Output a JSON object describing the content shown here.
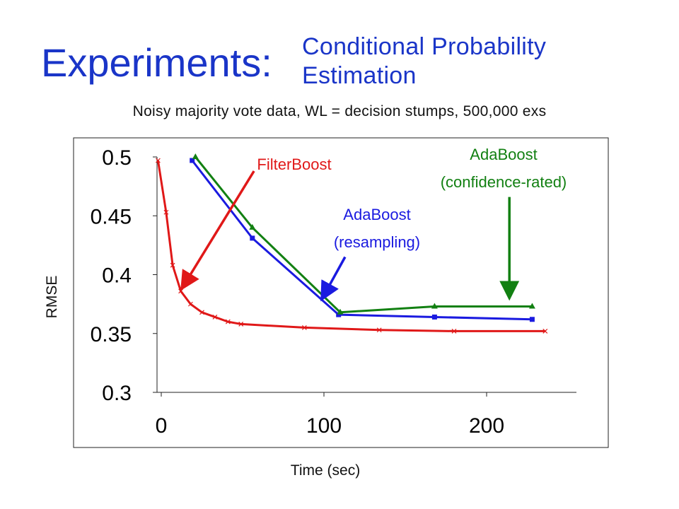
{
  "slide": {
    "title": "Experiments:",
    "subtitle_line1": "Conditional Probability",
    "subtitle_line2": "Estimation",
    "caption": "Noisy majority vote data, WL = decision stumps, 500,000 exs"
  },
  "colors": {
    "title": "#1a35c8",
    "filterboost": "#e01818",
    "adaboost_resampling": "#1a1ae0",
    "adaboost_confidence": "#128012"
  },
  "chart_data": {
    "type": "line",
    "xlabel": "Time (sec)",
    "ylabel": "RMSE",
    "xlim": [
      -5,
      255
    ],
    "ylim": [
      0.3,
      0.5
    ],
    "xticks": [
      0,
      100,
      200
    ],
    "xtick_labels": [
      "0",
      "100",
      "200"
    ],
    "yticks": [
      0.3,
      0.35,
      0.4,
      0.45,
      0.5
    ],
    "ytick_labels": [
      "0.3",
      "0.35",
      "0.4",
      "0.45",
      "0.5"
    ],
    "grid": false,
    "series": [
      {
        "name": "FilterBoost",
        "color": "#e01818",
        "marker": "x",
        "x": [
          -2,
          3,
          7,
          12,
          18,
          25,
          33,
          41,
          49,
          88,
          134,
          180,
          236
        ],
        "y": [
          0.497,
          0.453,
          0.408,
          0.386,
          0.375,
          0.368,
          0.364,
          0.36,
          0.358,
          0.355,
          0.353,
          0.352,
          0.352
        ]
      },
      {
        "name": "AdaBoost (resampling)",
        "color": "#1a1ae0",
        "marker": "square",
        "x": [
          19,
          56,
          109,
          168,
          228
        ],
        "y": [
          0.497,
          0.431,
          0.366,
          0.364,
          0.362
        ]
      },
      {
        "name": "AdaBoost (confidence-rated)",
        "color": "#128012",
        "marker": "triangle",
        "x": [
          21,
          56,
          110,
          168,
          228
        ],
        "y": [
          0.5,
          0.44,
          0.368,
          0.373,
          0.373
        ]
      }
    ],
    "annotations": [
      {
        "label_line1": "FilterBoost",
        "label_line2": "",
        "color": "#e01818",
        "from": [
          57,
          0.488
        ],
        "to": [
          13,
          0.389
        ]
      },
      {
        "label_line1": "AdaBoost",
        "label_line2": "(resampling)",
        "color": "#1a1ae0",
        "from": [
          113,
          0.415
        ],
        "to": [
          99,
          0.38
        ]
      },
      {
        "label_line1": "AdaBoost",
        "label_line2": "(confidence-rated)",
        "color": "#128012",
        "from": [
          214,
          0.466
        ],
        "to": [
          214,
          0.381
        ]
      }
    ]
  }
}
